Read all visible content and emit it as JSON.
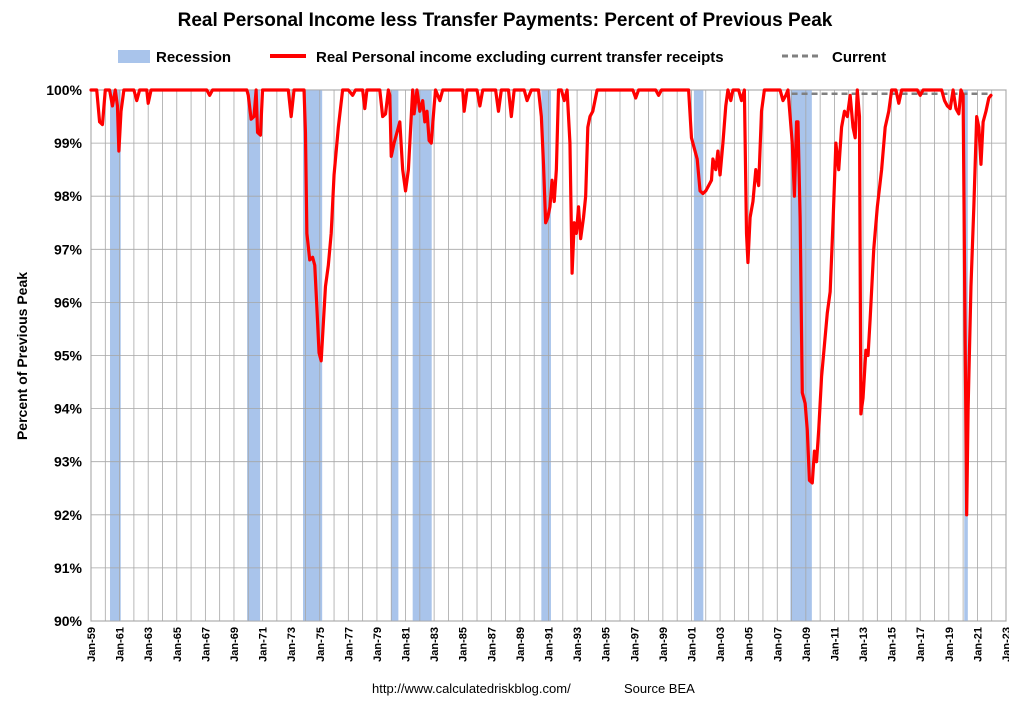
{
  "chart_data": {
    "type": "line",
    "title": "Real Personal Income less Transfer Payments: Percent of Previous Peak",
    "ylabel": "Percent of Previous Peak",
    "xlabel": "",
    "ylim": [
      90,
      100
    ],
    "xlim": [
      "Jan-59",
      "Jan-23"
    ],
    "yticks": [
      "90%",
      "91%",
      "92%",
      "93%",
      "94%",
      "95%",
      "96%",
      "97%",
      "98%",
      "99%",
      "100%"
    ],
    "xticks": [
      "Jan-59",
      "Jan-61",
      "Jan-63",
      "Jan-65",
      "Jan-67",
      "Jan-69",
      "Jan-71",
      "Jan-73",
      "Jan-75",
      "Jan-77",
      "Jan-79",
      "Jan-81",
      "Jan-83",
      "Jan-85",
      "Jan-87",
      "Jan-89",
      "Jan-91",
      "Jan-93",
      "Jan-95",
      "Jan-97",
      "Jan-99",
      "Jan-01",
      "Jan-03",
      "Jan-05",
      "Jan-07",
      "Jan-09",
      "Jan-11",
      "Jan-13",
      "Jan-15",
      "Jan-17",
      "Jan-19",
      "Jan-21",
      "Jan-23"
    ],
    "grid": true,
    "legend": {
      "placement": "top",
      "entries": [
        {
          "name": "Recession",
          "kind": "band",
          "color": "#a9c4eb"
        },
        {
          "name": "Real Personal income excluding current transfer receipts",
          "kind": "line",
          "color": "#ff0000"
        },
        {
          "name": "Current",
          "kind": "dashed",
          "color": "#808080"
        }
      ]
    },
    "recessions": [
      {
        "start": 1960.33,
        "end": 1961.08
      },
      {
        "start": 1969.92,
        "end": 1970.83
      },
      {
        "start": 1973.83,
        "end": 1975.17
      },
      {
        "start": 1980.0,
        "end": 1980.5
      },
      {
        "start": 1981.5,
        "end": 1982.83
      },
      {
        "start": 1990.5,
        "end": 1991.17
      },
      {
        "start": 2001.17,
        "end": 2001.83
      },
      {
        "start": 2007.92,
        "end": 2009.42
      },
      {
        "start": 2020.08,
        "end": 2020.33
      }
    ],
    "current": {
      "value": 99.93,
      "x_start": 2008.0,
      "x_end": 2022.0
    },
    "series": [
      {
        "name": "Real Personal income excluding current transfer receipts",
        "color": "#ff0000",
        "points": [
          [
            1959.0,
            100
          ],
          [
            1959.4,
            100
          ],
          [
            1959.6,
            99.4
          ],
          [
            1959.8,
            99.35
          ],
          [
            1960.0,
            100
          ],
          [
            1960.3,
            100
          ],
          [
            1960.5,
            99.7
          ],
          [
            1960.7,
            100
          ],
          [
            1960.85,
            99.7
          ],
          [
            1960.95,
            98.85
          ],
          [
            1961.1,
            99.6
          ],
          [
            1961.3,
            100
          ],
          [
            1962.0,
            100
          ],
          [
            1962.2,
            99.8
          ],
          [
            1962.4,
            100
          ],
          [
            1962.9,
            100
          ],
          [
            1963.0,
            99.75
          ],
          [
            1963.2,
            100
          ],
          [
            1967.1,
            100
          ],
          [
            1967.3,
            99.9
          ],
          [
            1967.5,
            100
          ],
          [
            1969.9,
            100
          ],
          [
            1970.0,
            99.9
          ],
          [
            1970.2,
            99.45
          ],
          [
            1970.4,
            99.5
          ],
          [
            1970.55,
            100
          ],
          [
            1970.65,
            99.2
          ],
          [
            1970.85,
            99.15
          ],
          [
            1971.0,
            100
          ],
          [
            1972.8,
            100
          ],
          [
            1973.0,
            99.5
          ],
          [
            1973.2,
            100
          ],
          [
            1973.9,
            100
          ],
          [
            1974.0,
            99.2
          ],
          [
            1974.1,
            97.3
          ],
          [
            1974.3,
            96.8
          ],
          [
            1974.5,
            96.85
          ],
          [
            1974.65,
            96.7
          ],
          [
            1974.8,
            95.9
          ],
          [
            1974.95,
            95.05
          ],
          [
            1975.1,
            94.9
          ],
          [
            1975.25,
            95.6
          ],
          [
            1975.4,
            96.3
          ],
          [
            1975.6,
            96.7
          ],
          [
            1975.8,
            97.3
          ],
          [
            1976.0,
            98.4
          ],
          [
            1976.3,
            99.3
          ],
          [
            1976.6,
            100
          ],
          [
            1977.0,
            100
          ],
          [
            1977.3,
            99.9
          ],
          [
            1977.5,
            100
          ],
          [
            1978.0,
            100
          ],
          [
            1978.15,
            99.65
          ],
          [
            1978.3,
            100
          ],
          [
            1979.2,
            100
          ],
          [
            1979.4,
            99.5
          ],
          [
            1979.6,
            99.55
          ],
          [
            1979.8,
            100
          ],
          [
            1979.9,
            99.9
          ],
          [
            1980.0,
            98.75
          ],
          [
            1980.2,
            99.0
          ],
          [
            1980.4,
            99.2
          ],
          [
            1980.6,
            99.4
          ],
          [
            1980.8,
            98.5
          ],
          [
            1981.0,
            98.1
          ],
          [
            1981.2,
            98.5
          ],
          [
            1981.4,
            99.5
          ],
          [
            1981.5,
            100
          ],
          [
            1981.6,
            99.55
          ],
          [
            1981.8,
            100
          ],
          [
            1981.9,
            99.8
          ],
          [
            1982.0,
            99.6
          ],
          [
            1982.2,
            99.8
          ],
          [
            1982.35,
            99.4
          ],
          [
            1982.5,
            99.6
          ],
          [
            1982.65,
            99.05
          ],
          [
            1982.8,
            99.0
          ],
          [
            1983.0,
            99.7
          ],
          [
            1983.1,
            100
          ],
          [
            1983.4,
            99.8
          ],
          [
            1983.6,
            100
          ],
          [
            1985.0,
            100
          ],
          [
            1985.1,
            99.6
          ],
          [
            1985.3,
            100
          ],
          [
            1986.0,
            100
          ],
          [
            1986.2,
            99.7
          ],
          [
            1986.4,
            100
          ],
          [
            1987.3,
            100
          ],
          [
            1987.5,
            99.6
          ],
          [
            1987.7,
            100
          ],
          [
            1988.2,
            100
          ],
          [
            1988.4,
            99.5
          ],
          [
            1988.6,
            100
          ],
          [
            1989.3,
            100
          ],
          [
            1989.5,
            99.8
          ],
          [
            1989.8,
            100
          ],
          [
            1990.3,
            100
          ],
          [
            1990.5,
            99.5
          ],
          [
            1990.65,
            98.6
          ],
          [
            1990.8,
            97.5
          ],
          [
            1990.95,
            97.6
          ],
          [
            1991.1,
            97.8
          ],
          [
            1991.25,
            98.3
          ],
          [
            1991.4,
            97.9
          ],
          [
            1991.55,
            98.5
          ],
          [
            1991.7,
            100
          ],
          [
            1991.9,
            100
          ],
          [
            1992.1,
            99.8
          ],
          [
            1992.3,
            100
          ],
          [
            1992.5,
            99.0
          ],
          [
            1992.65,
            96.55
          ],
          [
            1992.8,
            97.5
          ],
          [
            1992.95,
            97.3
          ],
          [
            1993.1,
            97.8
          ],
          [
            1993.25,
            97.2
          ],
          [
            1993.45,
            97.6
          ],
          [
            1993.6,
            98.0
          ],
          [
            1993.75,
            99.3
          ],
          [
            1993.9,
            99.5
          ],
          [
            1994.1,
            99.6
          ],
          [
            1994.4,
            100
          ],
          [
            1996.9,
            100
          ],
          [
            1997.1,
            99.85
          ],
          [
            1997.3,
            100
          ],
          [
            1998.5,
            100
          ],
          [
            1998.7,
            99.9
          ],
          [
            1998.9,
            100
          ],
          [
            2000.8,
            100
          ],
          [
            2001.0,
            99.1
          ],
          [
            2001.2,
            98.9
          ],
          [
            2001.4,
            98.7
          ],
          [
            2001.6,
            98.1
          ],
          [
            2001.8,
            98.05
          ],
          [
            2002.0,
            98.1
          ],
          [
            2002.2,
            98.2
          ],
          [
            2002.4,
            98.3
          ],
          [
            2002.5,
            98.7
          ],
          [
            2002.7,
            98.5
          ],
          [
            2002.85,
            98.85
          ],
          [
            2003.0,
            98.4
          ],
          [
            2003.2,
            99.0
          ],
          [
            2003.4,
            99.7
          ],
          [
            2003.55,
            100
          ],
          [
            2003.75,
            99.8
          ],
          [
            2003.9,
            100
          ],
          [
            2004.3,
            100
          ],
          [
            2004.5,
            99.8
          ],
          [
            2004.7,
            100
          ],
          [
            2004.85,
            97.3
          ],
          [
            2004.95,
            96.75
          ],
          [
            2005.1,
            97.6
          ],
          [
            2005.3,
            97.9
          ],
          [
            2005.5,
            98.5
          ],
          [
            2005.7,
            98.2
          ],
          [
            2005.9,
            99.6
          ],
          [
            2006.1,
            100
          ],
          [
            2007.2,
            100
          ],
          [
            2007.4,
            99.8
          ],
          [
            2007.6,
            99.9
          ],
          [
            2007.75,
            100
          ],
          [
            2007.9,
            99.5
          ],
          [
            2008.05,
            99.0
          ],
          [
            2008.2,
            98.0
          ],
          [
            2008.35,
            99.4
          ],
          [
            2008.45,
            99.4
          ],
          [
            2008.6,
            97.6
          ],
          [
            2008.75,
            94.3
          ],
          [
            2008.95,
            94.1
          ],
          [
            2009.1,
            93.6
          ],
          [
            2009.25,
            92.65
          ],
          [
            2009.45,
            92.6
          ],
          [
            2009.6,
            93.2
          ],
          [
            2009.75,
            93.0
          ],
          [
            2009.9,
            93.6
          ],
          [
            2010.1,
            94.6
          ],
          [
            2010.3,
            95.2
          ],
          [
            2010.5,
            95.8
          ],
          [
            2010.7,
            96.2
          ],
          [
            2010.9,
            97.5
          ],
          [
            2011.1,
            99.0
          ],
          [
            2011.3,
            98.5
          ],
          [
            2011.5,
            99.3
          ],
          [
            2011.7,
            99.6
          ],
          [
            2011.9,
            99.5
          ],
          [
            2012.1,
            99.9
          ],
          [
            2012.3,
            99.3
          ],
          [
            2012.45,
            99.1
          ],
          [
            2012.6,
            100
          ],
          [
            2012.75,
            99.5
          ],
          [
            2012.85,
            93.9
          ],
          [
            2013.0,
            94.2
          ],
          [
            2013.2,
            95.1
          ],
          [
            2013.35,
            95.0
          ],
          [
            2013.5,
            95.7
          ],
          [
            2013.75,
            97.0
          ],
          [
            2014.0,
            97.8
          ],
          [
            2014.3,
            98.5
          ],
          [
            2014.55,
            99.3
          ],
          [
            2014.8,
            99.6
          ],
          [
            2015.0,
            100
          ],
          [
            2015.3,
            100
          ],
          [
            2015.5,
            99.75
          ],
          [
            2015.7,
            100
          ],
          [
            2016.8,
            100
          ],
          [
            2017.0,
            99.9
          ],
          [
            2017.2,
            100
          ],
          [
            2018.5,
            100
          ],
          [
            2018.7,
            99.8
          ],
          [
            2018.9,
            99.7
          ],
          [
            2019.1,
            99.65
          ],
          [
            2019.3,
            100
          ],
          [
            2019.5,
            99.65
          ],
          [
            2019.7,
            99.55
          ],
          [
            2019.85,
            100
          ],
          [
            2020.0,
            99.9
          ],
          [
            2020.12,
            96.0
          ],
          [
            2020.25,
            92.0
          ],
          [
            2020.35,
            94.0
          ],
          [
            2020.55,
            96.3
          ],
          [
            2020.75,
            97.8
          ],
          [
            2020.95,
            99.5
          ],
          [
            2021.1,
            99.3
          ],
          [
            2021.25,
            98.6
          ],
          [
            2021.4,
            99.4
          ],
          [
            2021.6,
            99.6
          ],
          [
            2021.8,
            99.85
          ],
          [
            2021.95,
            99.9
          ]
        ]
      }
    ]
  },
  "footer": {
    "url": "http://www.calculatedriskblog.com/",
    "source": "Source BEA"
  }
}
